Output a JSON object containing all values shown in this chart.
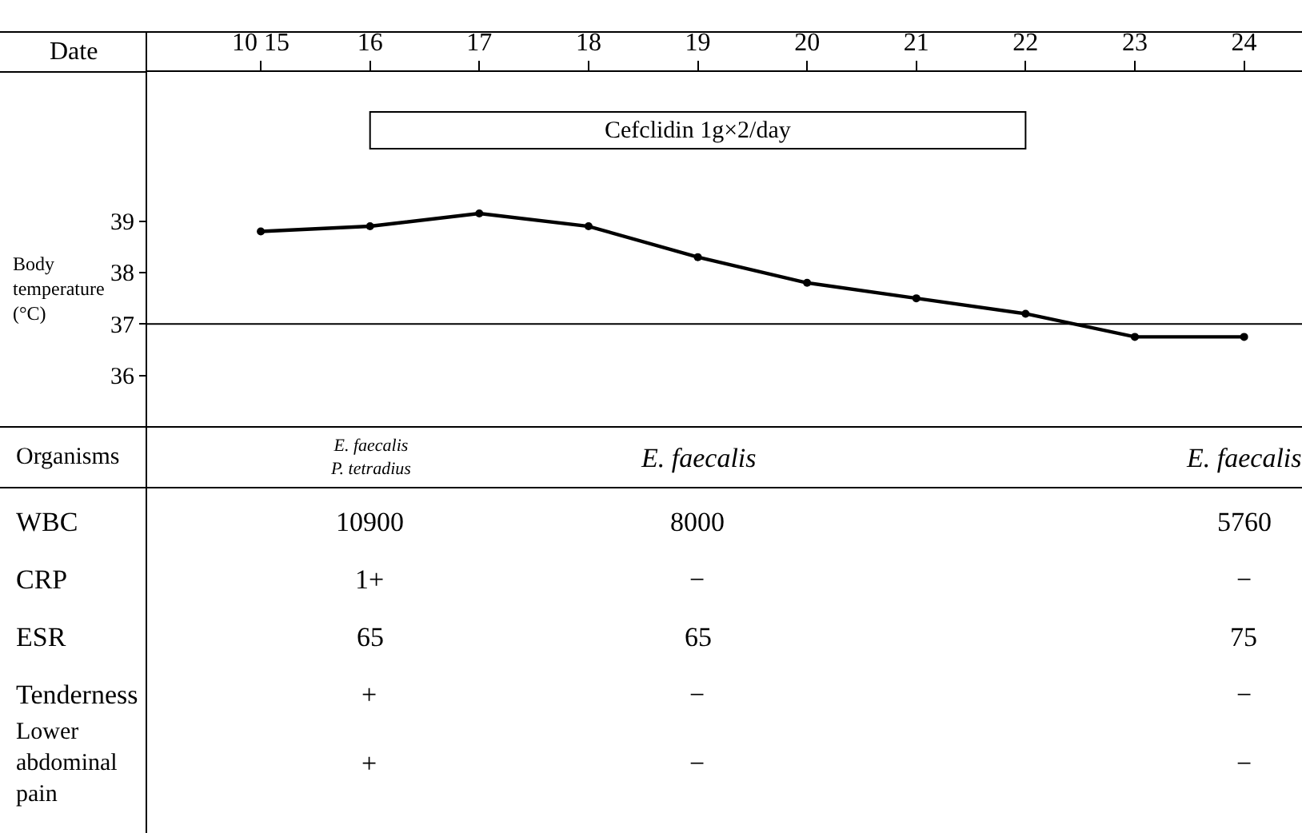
{
  "chart_data": {
    "type": "line",
    "xlabel": "Date",
    "ylabel": "Body temperature (°C)",
    "categories": [
      "10 15",
      "16",
      "17",
      "18",
      "19",
      "20",
      "21",
      "22",
      "23",
      "24"
    ],
    "values": [
      38.8,
      38.9,
      39.15,
      38.9,
      38.3,
      37.8,
      37.5,
      37.2,
      36.75,
      36.75
    ],
    "color": "#000000",
    "ylim": [
      35,
      41.9
    ],
    "yticks": [
      36,
      37,
      38,
      39
    ],
    "grid": false,
    "legend": false,
    "marker": "circle",
    "line_style": "solid",
    "ref_lines": [
      {
        "axis": "y",
        "value": 37,
        "color": "#000000"
      }
    ],
    "bands": [
      {
        "axis": "x",
        "from": "16",
        "to": "22",
        "label": "Cefclidin 1g×2/day",
        "color": "#ffffff"
      }
    ],
    "annotations": [
      "Organisms",
      "E. faecalis\nP. tetradius",
      "E. faecalis",
      "E. faecalis",
      "WBC",
      "10900",
      "8000",
      "5760",
      "CRP",
      "1+",
      "−",
      "−",
      "ESR",
      "65",
      "65",
      "75",
      "Tenderness",
      "+",
      "−",
      "−",
      "Lower abdominal pain",
      "+",
      "−",
      "−"
    ]
  }
}
